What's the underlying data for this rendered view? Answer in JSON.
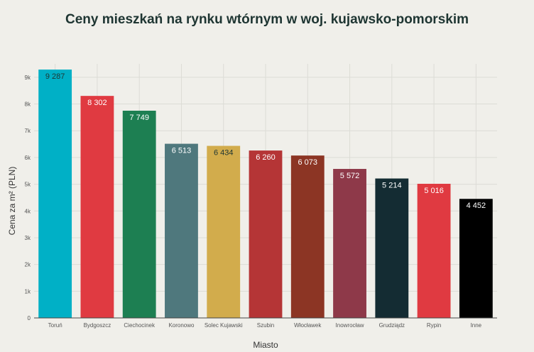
{
  "chart_data": {
    "type": "bar",
    "title": "Ceny mieszkań na rynku wtórnym w woj. kujawsko-pomorskim",
    "xlabel": "Miasto",
    "ylabel": "Cena za m² (PLN)",
    "ylim": [
      0,
      9500
    ],
    "yticks": [
      0,
      1000,
      2000,
      3000,
      4000,
      5000,
      6000,
      7000,
      8000,
      9000
    ],
    "ytick_labels": [
      "0",
      "1k",
      "2k",
      "3k",
      "4k",
      "5k",
      "6k",
      "7k",
      "8k",
      "9k"
    ],
    "grid": true,
    "categories": [
      "Toruń",
      "Bydgoszcz",
      "Ciechocinek",
      "Koronowo",
      "Solec Kujawski",
      "Szubin",
      "Włocławek",
      "Inowrocław",
      "Grudziądz",
      "Rypin",
      "Inne"
    ],
    "values": [
      9287,
      8302,
      7749,
      6513,
      6434,
      6260,
      6073,
      5572,
      5214,
      5016,
      4452
    ],
    "value_labels": [
      "9 287",
      "8 302",
      "7 749",
      "6 513",
      "6 434",
      "6 260",
      "6 073",
      "5 572",
      "5 214",
      "5 016",
      "4 452"
    ],
    "colors": [
      "#00b0c6",
      "#e03a41",
      "#1d7f52",
      "#4f787d",
      "#d2ac4c",
      "#b53536",
      "#8c3524",
      "#8e3949",
      "#142c33",
      "#e03a41",
      "#000000"
    ],
    "label_colors": [
      "#1e3532",
      "#ffffff",
      "#ffffff",
      "#ffffff",
      "#1e3532",
      "#ffffff",
      "#ffffff",
      "#ffffff",
      "#ffffff",
      "#ffffff",
      "#ffffff"
    ]
  }
}
